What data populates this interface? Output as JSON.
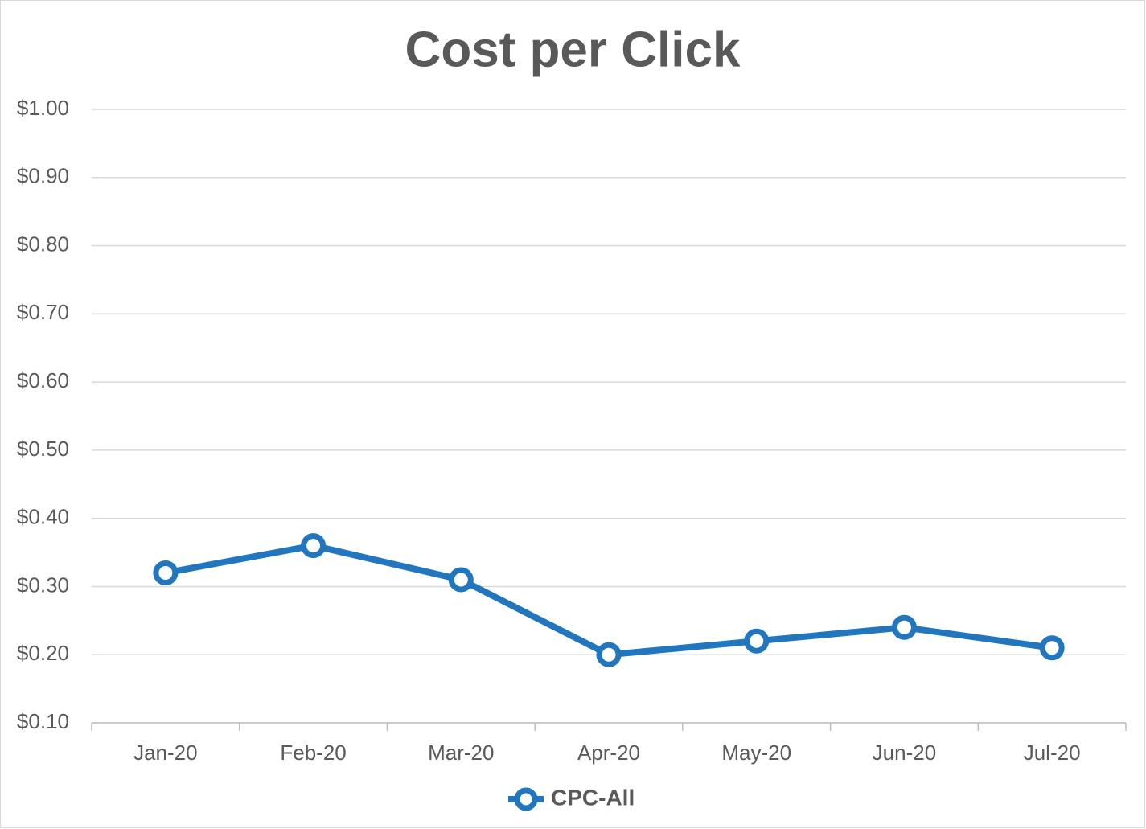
{
  "chart_data": {
    "type": "line",
    "title": "Cost per Click",
    "categories": [
      "Jan-20",
      "Feb-20",
      "Mar-20",
      "Apr-20",
      "May-20",
      "Jun-20",
      "Jul-20"
    ],
    "series": [
      {
        "name": "CPC-All",
        "color": "#2176bd",
        "values": [
          0.32,
          0.36,
          0.31,
          0.2,
          0.22,
          0.24,
          0.21
        ]
      }
    ],
    "ylim": [
      0.1,
      1.0
    ],
    "yticks": [
      {
        "value": 0.1,
        "label": "$0.10"
      },
      {
        "value": 0.2,
        "label": "$0.20"
      },
      {
        "value": 0.3,
        "label": "$0.30"
      },
      {
        "value": 0.4,
        "label": "$0.40"
      },
      {
        "value": 0.5,
        "label": "$0.50"
      },
      {
        "value": 0.6,
        "label": "$0.60"
      },
      {
        "value": 0.7,
        "label": "$0.70"
      },
      {
        "value": 0.8,
        "label": "$0.80"
      },
      {
        "value": 0.9,
        "label": "$0.90"
      },
      {
        "value": 1.0,
        "label": "$1.00"
      }
    ],
    "grid": true,
    "legend": "bottom"
  }
}
